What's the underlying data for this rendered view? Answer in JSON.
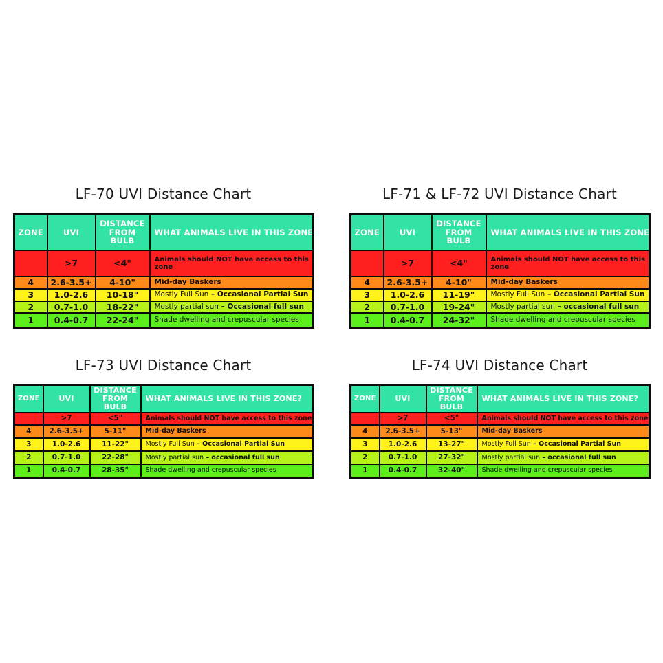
{
  "headers": {
    "zone": "ZONE",
    "uvi": "UVI",
    "distance": "DISTANCE\nFROM BULB",
    "animals": "WHAT ANIMALS LIVE IN THIS ZONE?"
  },
  "descriptions": {
    "z5": "Animals should NOT have access to this zone",
    "z4": "Mid-day Baskers",
    "z3_light": "Mostly Full Sun",
    "z3_bold": "– Occasional Partial Sun",
    "z2_light": "Mostly partial sun",
    "z2_bold": "– Occasional full sun",
    "z2_bold_lower": "– occasional full sun",
    "z1": "Shade dwelling and crepuscular species"
  },
  "charts": [
    {
      "title": "LF-70 UVI Distance Chart",
      "rows": [
        {
          "zone": "",
          "uvi": ">7",
          "distance": "<4\""
        },
        {
          "zone": "4",
          "uvi": "2.6-3.5+",
          "distance": "4-10\""
        },
        {
          "zone": "3",
          "uvi": "1.0-2.6",
          "distance": "10-18\""
        },
        {
          "zone": "2",
          "uvi": "0.7-1.0",
          "distance": "18-22\""
        },
        {
          "zone": "1",
          "uvi": "0.4-0.7",
          "distance": "22-24\""
        }
      ]
    },
    {
      "title": "LF-71 & LF-72 UVI Distance Chart",
      "rows": [
        {
          "zone": "",
          "uvi": ">7",
          "distance": "<4\""
        },
        {
          "zone": "4",
          "uvi": "2.6-3.5+",
          "distance": "4-10\""
        },
        {
          "zone": "3",
          "uvi": "1.0-2.6",
          "distance": "11-19\""
        },
        {
          "zone": "2",
          "uvi": "0.7-1.0",
          "distance": "19-24\""
        },
        {
          "zone": "1",
          "uvi": "0.4-0.7",
          "distance": "24-32\""
        }
      ]
    },
    {
      "title": "LF-73 UVI Distance Chart",
      "rows": [
        {
          "zone": "",
          "uvi": ">7",
          "distance": "<5\""
        },
        {
          "zone": "4",
          "uvi": "2.6-3.5+",
          "distance": "5-11\""
        },
        {
          "zone": "3",
          "uvi": "1.0-2.6",
          "distance": "11-22\""
        },
        {
          "zone": "2",
          "uvi": "0.7-1.0",
          "distance": "22-28\""
        },
        {
          "zone": "1",
          "uvi": "0.4-0.7",
          "distance": "28-35\""
        }
      ]
    },
    {
      "title": "LF-74 UVI Distance Chart",
      "rows": [
        {
          "zone": "",
          "uvi": ">7",
          "distance": "<5\""
        },
        {
          "zone": "4",
          "uvi": "2.6-3.5+",
          "distance": "5-13\""
        },
        {
          "zone": "3",
          "uvi": "1.0-2.6",
          "distance": "13-27\""
        },
        {
          "zone": "2",
          "uvi": "0.7-1.0",
          "distance": "27-32\""
        },
        {
          "zone": "1",
          "uvi": "0.4-0.7",
          "distance": "32-40\""
        }
      ]
    }
  ],
  "colors": {
    "header": "#33e3a4",
    "zone_no_access": "#ff1f1f",
    "zone_4": "#ff8a1a",
    "zone_3": "#fff21a",
    "zone_2": "#b5f21a",
    "zone_1": "#5cee1a",
    "border": "#0b0b0b"
  }
}
